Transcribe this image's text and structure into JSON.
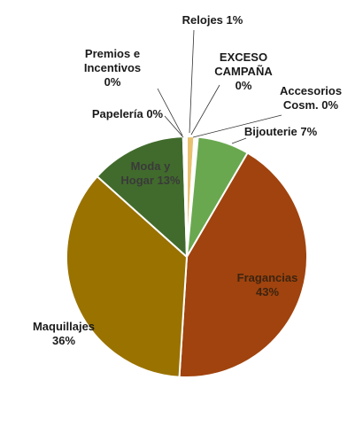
{
  "chart_data": {
    "type": "pie",
    "title": "",
    "slices": [
      {
        "key": "relojes",
        "label_lines": [
          "Relojes 1%"
        ],
        "value": 1,
        "color": "#e8c170",
        "label_color": "#1a1a1a"
      },
      {
        "key": "exceso",
        "label_lines": [
          "EXCESO",
          "CAMPAÑA",
          "0%"
        ],
        "value": 0,
        "color": "#c9a035",
        "label_color": "#1a1a1a"
      },
      {
        "key": "accesorios",
        "label_lines": [
          "Accesorios",
          "Cosm. 0%"
        ],
        "value": 0,
        "color": "#b0b0b0",
        "label_color": "#1a1a1a"
      },
      {
        "key": "bijouterie",
        "label_lines": [
          "Bijouterie 7%"
        ],
        "value": 7,
        "color": "#6aa84f",
        "label_color": "#1a1a1a"
      },
      {
        "key": "fragancias",
        "label_lines": [
          "Fragancias",
          "43%"
        ],
        "value": 43,
        "color": "#a0430e",
        "label_color": "#3d2410"
      },
      {
        "key": "maquillajes",
        "label_lines": [
          "Maquillajes",
          "36%"
        ],
        "value": 36,
        "color": "#9a7200",
        "label_color": "#1a1a1a"
      },
      {
        "key": "moda",
        "label_lines": [
          "Moda y",
          "Hogar 13%"
        ],
        "value": 13,
        "color": "#416b2c",
        "label_color": "#3a3a3a"
      },
      {
        "key": "papeleria",
        "label_lines": [
          "Papelería 0%"
        ],
        "value": 0,
        "color": "#7a7a7a",
        "label_color": "#1a1a1a"
      },
      {
        "key": "premios",
        "label_lines": [
          "Premios e",
          "Incentivos",
          "0%"
        ],
        "value": 0,
        "color": "#c0c0c0",
        "label_color": "#1a1a1a"
      }
    ]
  }
}
